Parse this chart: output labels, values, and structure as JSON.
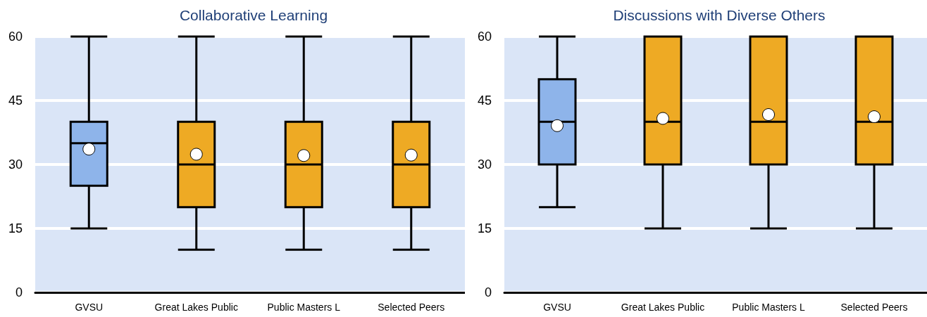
{
  "chart_data": [
    {
      "type": "box",
      "title": "Collaborative Learning",
      "categories": [
        "GVSU",
        "Great Lakes Public",
        "Public Masters L",
        "Selected Peers"
      ],
      "colors": [
        "#8eb4ea",
        "#eeaa24",
        "#eeaa24",
        "#eeaa24"
      ],
      "boxes": [
        {
          "low": 15,
          "q1": 25,
          "median": 35,
          "q3": 40,
          "high": 60,
          "mean": 33.6
        },
        {
          "low": 10,
          "q1": 20,
          "median": 30,
          "q3": 40,
          "high": 60,
          "mean": 32.4
        },
        {
          "low": 10,
          "q1": 20,
          "median": 30,
          "q3": 40,
          "high": 60,
          "mean": 32.1
        },
        {
          "low": 10,
          "q1": 20,
          "median": 30,
          "q3": 40,
          "high": 60,
          "mean": 32.2
        }
      ],
      "ylim": [
        0,
        60
      ],
      "yticks": [
        0,
        15,
        30,
        45,
        60
      ],
      "grid": "y"
    },
    {
      "type": "box",
      "title": "Discussions with Diverse Others",
      "categories": [
        "GVSU",
        "Great Lakes Public",
        "Public Masters L",
        "Selected Peers"
      ],
      "colors": [
        "#8eb4ea",
        "#eeaa24",
        "#eeaa24",
        "#eeaa24"
      ],
      "boxes": [
        {
          "low": 20,
          "q1": 30,
          "median": 40,
          "q3": 50,
          "high": 60,
          "mean": 39.1
        },
        {
          "low": 15,
          "q1": 30,
          "median": 40,
          "q3": 60,
          "high": 60,
          "mean": 40.8
        },
        {
          "low": 15,
          "q1": 30,
          "median": 40,
          "q3": 60,
          "high": 60,
          "mean": 41.7
        },
        {
          "low": 15,
          "q1": 30,
          "median": 40,
          "q3": 60,
          "high": 60,
          "mean": 41.2
        }
      ],
      "ylim": [
        0,
        60
      ],
      "yticks": [
        0,
        15,
        30,
        45,
        60
      ],
      "grid": "y"
    }
  ]
}
